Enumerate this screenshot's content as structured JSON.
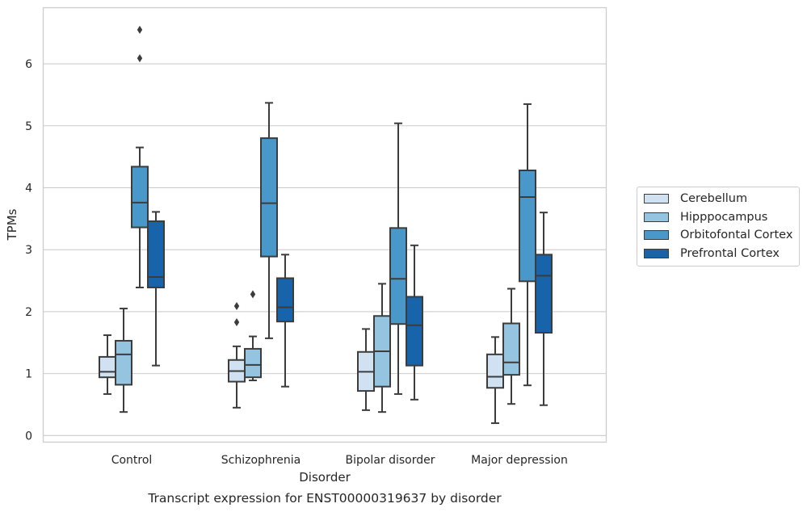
{
  "chart_data": {
    "type": "box",
    "title": "",
    "caption": "Transcript expression for ENST00000319637 by disorder",
    "xlabel": "Disorder",
    "ylabel": "TPMs",
    "ylim": [
      -0.1,
      6.9
    ],
    "yticks": [
      0,
      1,
      2,
      3,
      4,
      5,
      6
    ],
    "grid": "horizontal",
    "legend_placement": "outside-right",
    "categories": [
      "Control",
      "Schizophrenia",
      "Bipolar disorder",
      "Major depression"
    ],
    "series": [
      {
        "name": "Cerebellum",
        "color": "#d0e1f2",
        "boxes": [
          {
            "whisker_low": 0.67,
            "q1": 0.94,
            "median": 1.03,
            "q3": 1.27,
            "whisker_high": 1.62,
            "outliers": []
          },
          {
            "whisker_low": 0.45,
            "q1": 0.87,
            "median": 1.04,
            "q3": 1.22,
            "whisker_high": 1.44,
            "outliers": [
              1.83,
              2.09
            ]
          },
          {
            "whisker_low": 0.41,
            "q1": 0.72,
            "median": 1.03,
            "q3": 1.35,
            "whisker_high": 1.72,
            "outliers": []
          },
          {
            "whisker_low": 0.2,
            "q1": 0.77,
            "median": 0.95,
            "q3": 1.31,
            "whisker_high": 1.59,
            "outliers": []
          }
        ]
      },
      {
        "name": "Hipppocampus",
        "color": "#94c4df",
        "boxes": [
          {
            "whisker_low": 0.38,
            "q1": 0.82,
            "median": 1.31,
            "q3": 1.53,
            "whisker_high": 2.05,
            "outliers": []
          },
          {
            "whisker_low": 0.89,
            "q1": 0.94,
            "median": 1.14,
            "q3": 1.4,
            "whisker_high": 1.6,
            "outliers": [
              2.28
            ]
          },
          {
            "whisker_low": 0.38,
            "q1": 0.79,
            "median": 1.36,
            "q3": 1.93,
            "whisker_high": 2.45,
            "outliers": []
          },
          {
            "whisker_low": 0.51,
            "q1": 0.98,
            "median": 1.18,
            "q3": 1.81,
            "whisker_high": 2.37,
            "outliers": []
          }
        ]
      },
      {
        "name": "Orbitofontal Cortex",
        "color": "#4a98c9",
        "boxes": [
          {
            "whisker_low": 2.39,
            "q1": 3.36,
            "median": 3.76,
            "q3": 4.34,
            "whisker_high": 4.65,
            "outliers": [
              6.09,
              6.55
            ]
          },
          {
            "whisker_low": 1.57,
            "q1": 2.89,
            "median": 3.75,
            "q3": 4.8,
            "whisker_high": 5.37,
            "outliers": []
          },
          {
            "whisker_low": 0.67,
            "q1": 1.8,
            "median": 2.53,
            "q3": 3.35,
            "whisker_high": 5.04,
            "outliers": []
          },
          {
            "whisker_low": 0.81,
            "q1": 2.49,
            "median": 3.85,
            "q3": 4.28,
            "whisker_high": 5.35,
            "outliers": []
          }
        ]
      },
      {
        "name": "Prefrontal Cortex",
        "color": "#1764ab",
        "boxes": [
          {
            "whisker_low": 1.13,
            "q1": 2.39,
            "median": 2.56,
            "q3": 3.46,
            "whisker_high": 3.61,
            "outliers": []
          },
          {
            "whisker_low": 0.79,
            "q1": 1.84,
            "median": 2.07,
            "q3": 2.54,
            "whisker_high": 2.92,
            "outliers": []
          },
          {
            "whisker_low": 0.58,
            "q1": 1.13,
            "median": 1.78,
            "q3": 2.24,
            "whisker_high": 3.07,
            "outliers": []
          },
          {
            "whisker_low": 0.49,
            "q1": 1.66,
            "median": 2.58,
            "q3": 2.92,
            "whisker_high": 3.6,
            "outliers": []
          }
        ]
      }
    ]
  }
}
